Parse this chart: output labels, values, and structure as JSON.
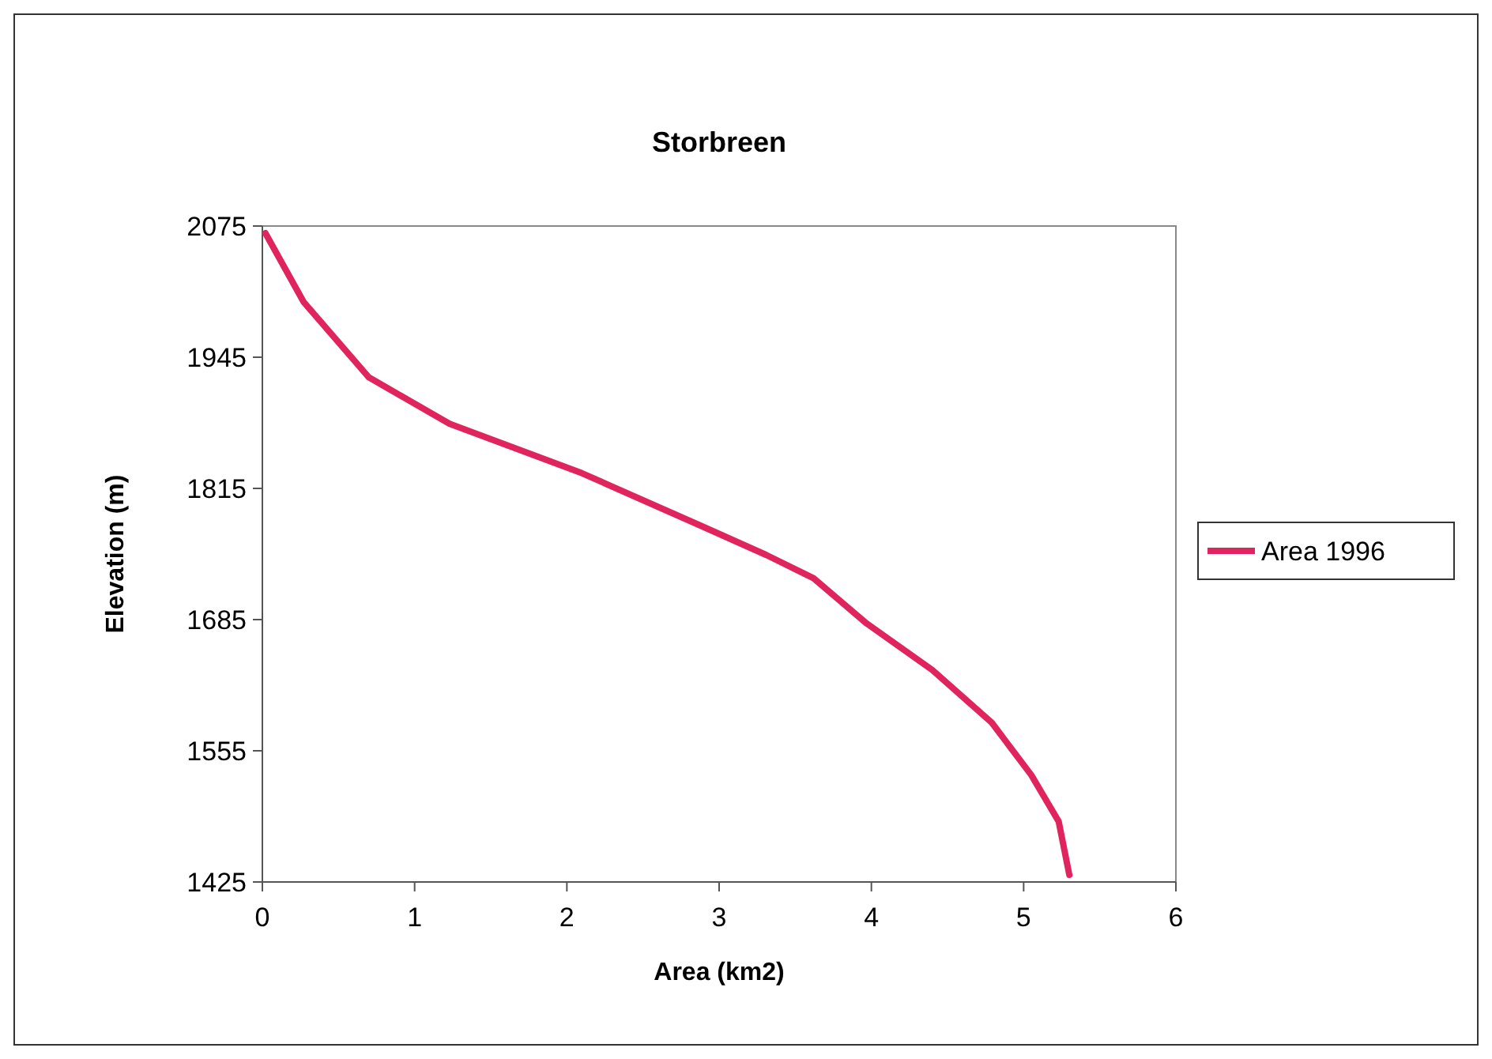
{
  "chart_data": {
    "type": "line",
    "title": "Storbreen",
    "xlabel": "Area (km2)",
    "ylabel": "Elevation (m)",
    "xlim": [
      0,
      6
    ],
    "xticks": [
      0,
      1,
      2,
      3,
      4,
      5,
      6
    ],
    "ylim": [
      1425,
      2075
    ],
    "yticks": [
      1425,
      1555,
      1685,
      1815,
      1945,
      2075
    ],
    "grid": false,
    "legend": "right",
    "marker": "none",
    "line_style": "solid",
    "series": [
      {
        "name": "Area 1996",
        "color": "#e0245e",
        "x": [
          0.02,
          0.27,
          0.7,
          1.23,
          2.1,
          2.88,
          3.31,
          3.62,
          3.97,
          4.4,
          4.79,
          5.05,
          5.23,
          5.3
        ],
        "values": [
          2068,
          2000,
          1925,
          1879,
          1830,
          1778,
          1749,
          1726,
          1681,
          1635,
          1583,
          1531,
          1485,
          1432
        ]
      }
    ]
  }
}
